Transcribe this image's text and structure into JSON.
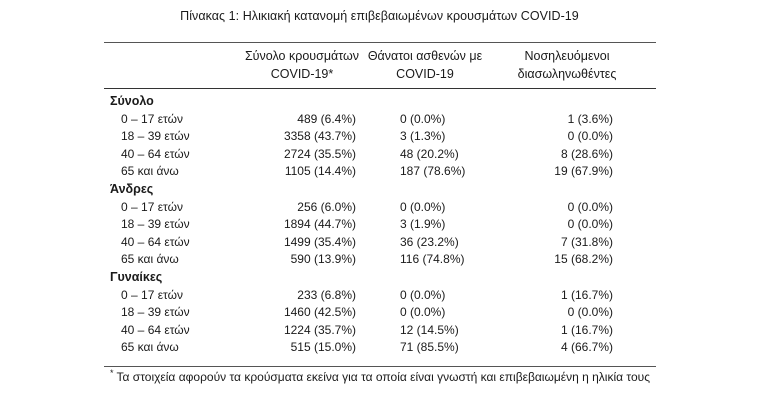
{
  "caption": "Πίνακας 1: Ηλικιακή κατανομή επιβεβαιωμένων κρουσμάτων COVID-19",
  "headers": {
    "col1_line1": "Σύνολο κρουσμάτων",
    "col1_line2": "COVID-19*",
    "col2_line1": "Θάνατοι ασθενών με",
    "col2_line2": "COVID-19",
    "col3_line1": "Νοσηλευόμενοι",
    "col3_line2": "διασωληνωθέντες"
  },
  "groups": [
    {
      "title": "Σύνολο",
      "rows": [
        {
          "age": "0 – 17 ετών",
          "cases": "489 (6.4%)",
          "deaths": "0 (0.0%)",
          "intubated": "1 (3.6%)"
        },
        {
          "age": "18 – 39 ετών",
          "cases": "3358 (43.7%)",
          "deaths": "3 (1.3%)",
          "intubated": "0 (0.0%)"
        },
        {
          "age": "40 – 64 ετών",
          "cases": "2724 (35.5%)",
          "deaths": "48 (20.2%)",
          "intubated": "8 (28.6%)"
        },
        {
          "age": "65 και άνω",
          "cases": "1105 (14.4%)",
          "deaths": "187 (78.6%)",
          "intubated": "19 (67.9%)"
        }
      ]
    },
    {
      "title": "Άνδρες",
      "rows": [
        {
          "age": "0 – 17 ετών",
          "cases": "256 (6.0%)",
          "deaths": "0 (0.0%)",
          "intubated": "0 (0.0%)"
        },
        {
          "age": "18 – 39 ετών",
          "cases": "1894 (44.7%)",
          "deaths": "3 (1.9%)",
          "intubated": "0 (0.0%)"
        },
        {
          "age": "40 – 64 ετών",
          "cases": "1499 (35.4%)",
          "deaths": "36 (23.2%)",
          "intubated": "7 (31.8%)"
        },
        {
          "age": "65 και άνω",
          "cases": "590 (13.9%)",
          "deaths": "116 (74.8%)",
          "intubated": "15 (68.2%)"
        }
      ]
    },
    {
      "title": "Γυναίκες",
      "rows": [
        {
          "age": "0 – 17 ετών",
          "cases": "233 (6.8%)",
          "deaths": "0 (0.0%)",
          "intubated": "1 (16.7%)"
        },
        {
          "age": "18 – 39 ετών",
          "cases": "1460 (42.5%)",
          "deaths": "0 (0.0%)",
          "intubated": "0 (0.0%)"
        },
        {
          "age": "40 – 64 ετών",
          "cases": "1224 (35.7%)",
          "deaths": "12 (14.5%)",
          "intubated": "1 (16.7%)"
        },
        {
          "age": "65 και άνω",
          "cases": "515 (15.0%)",
          "deaths": "71 (85.5%)",
          "intubated": "4 (66.7%)"
        }
      ]
    }
  ],
  "footnote_marker": "*",
  "footnote": "Τα στοιχεία αφορούν τα κρούσματα εκείνα για τα οποία είναι γνωστή και επιβεβαιωμένη η ηλικία τους"
}
